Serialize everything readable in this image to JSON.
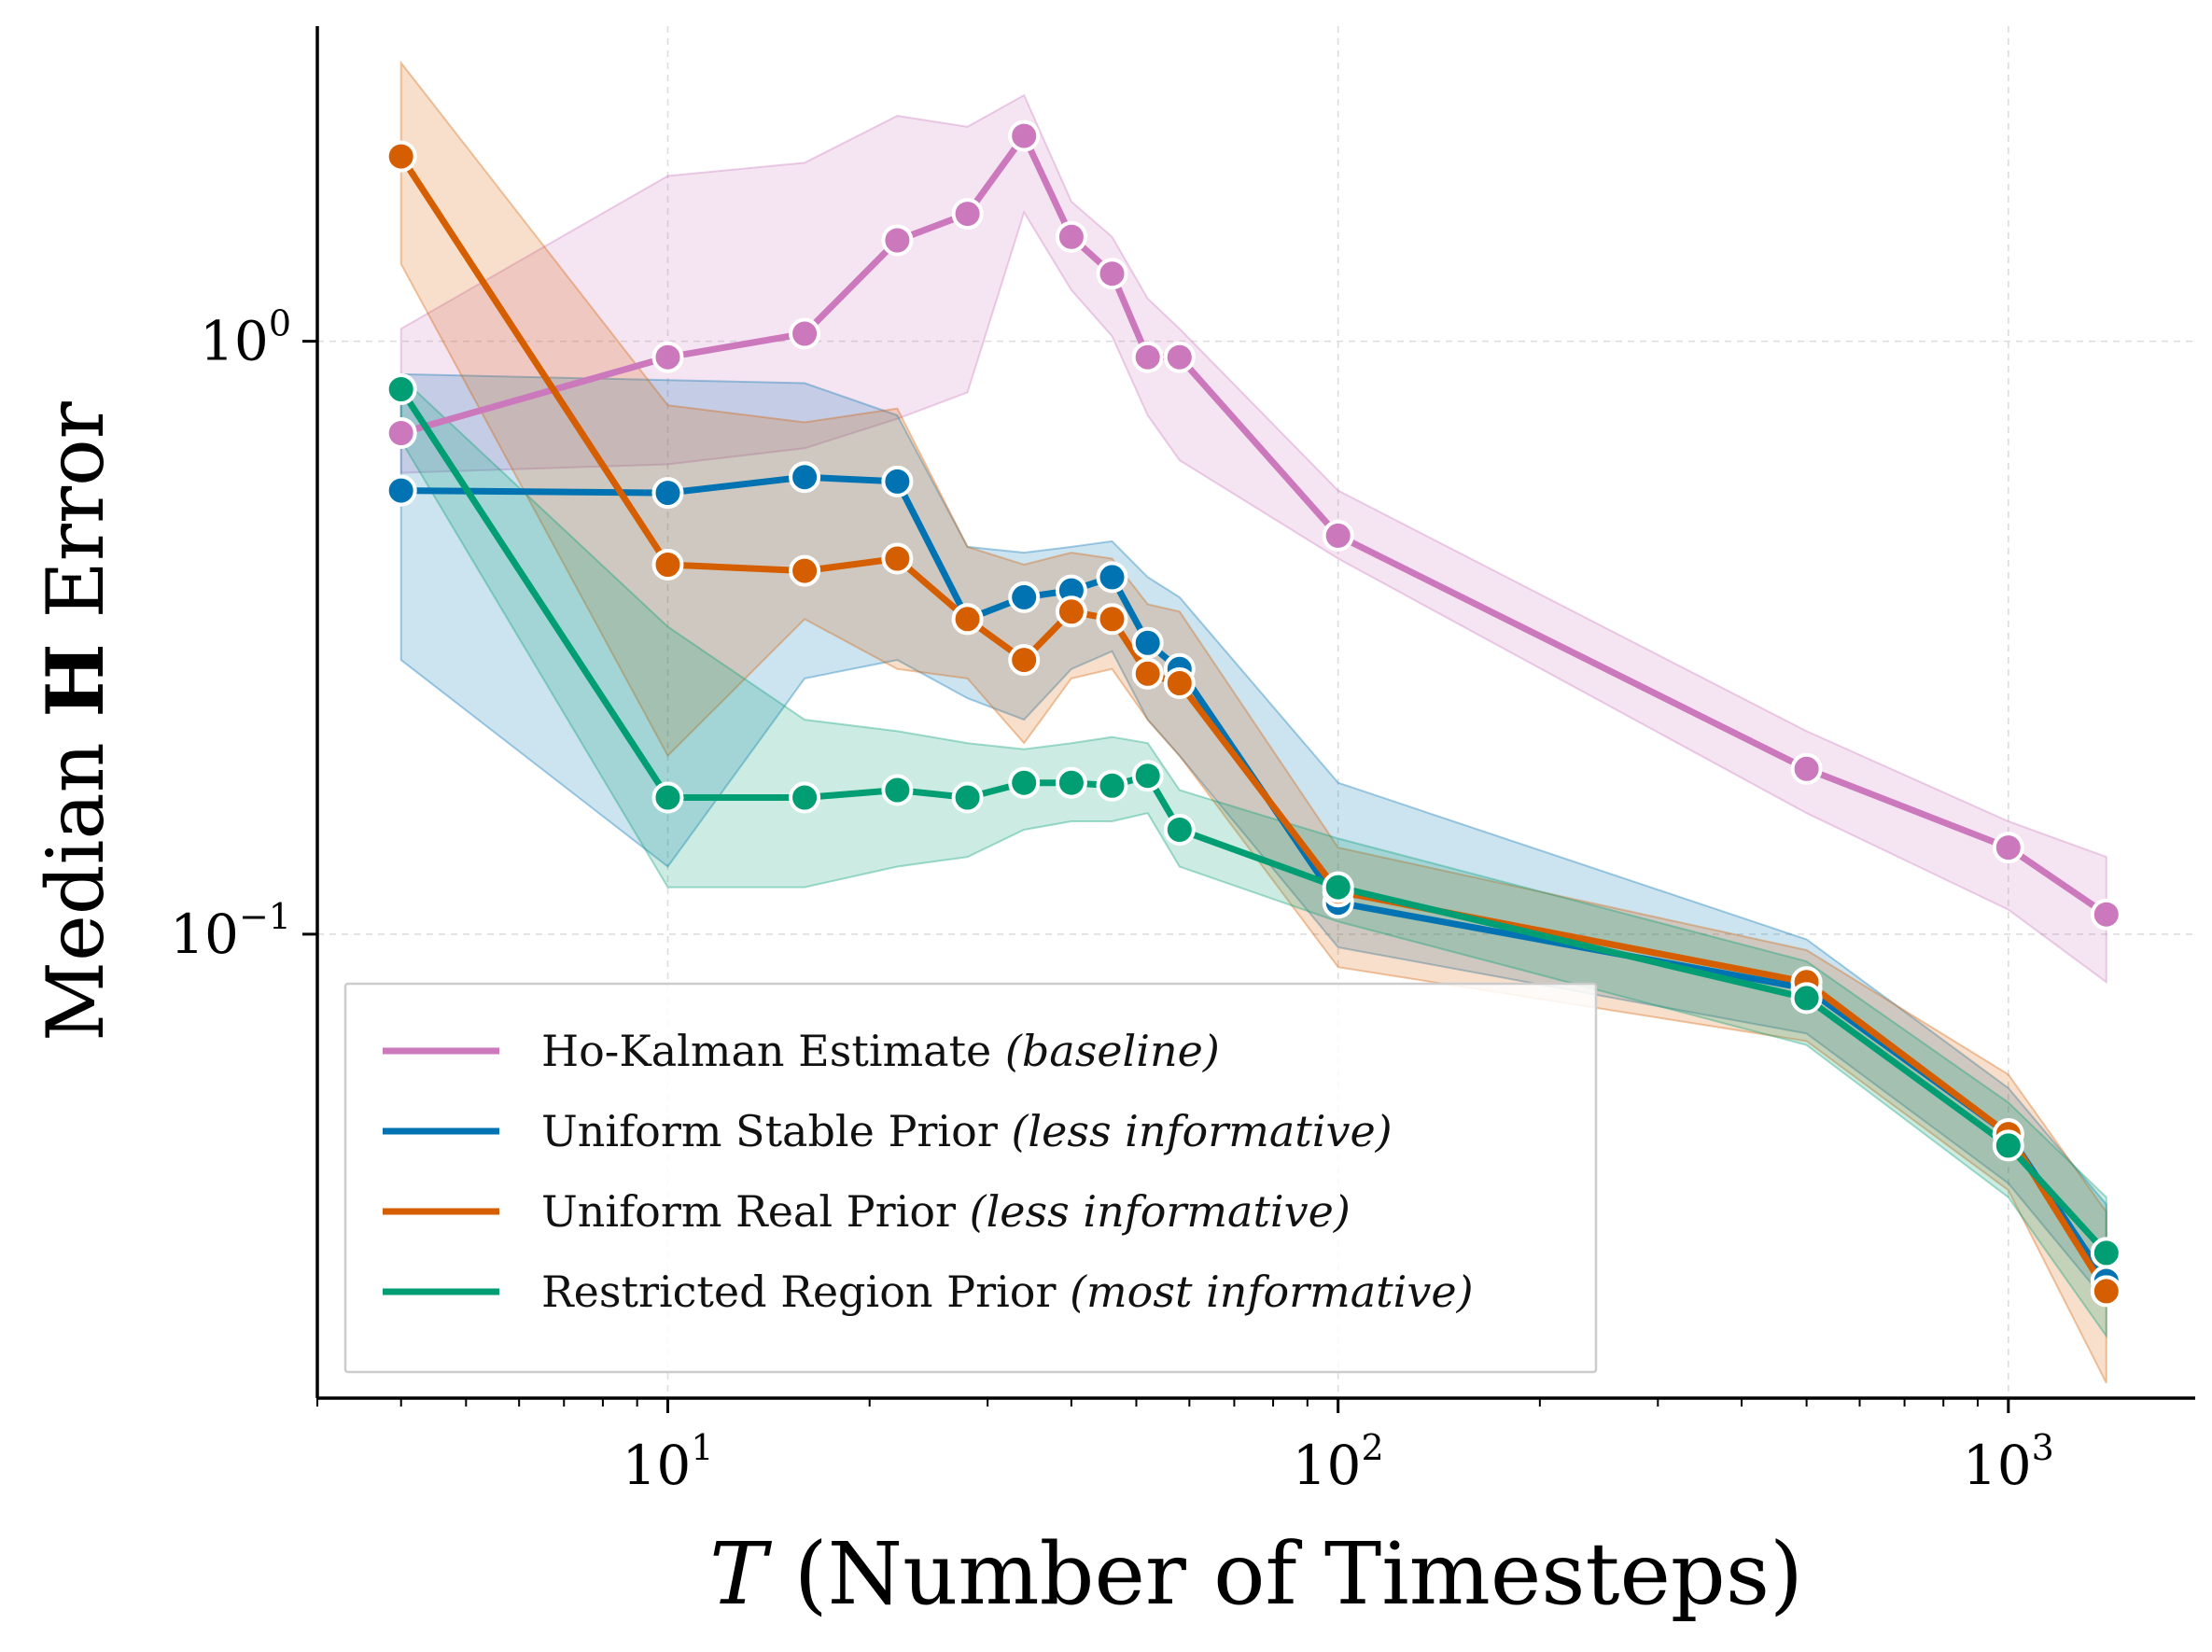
{
  "chart_data": {
    "type": "line",
    "xscale": "log",
    "yscale": "log",
    "xlim": [
      3.0,
      1900
    ],
    "ylim": [
      0.0165,
      3.4
    ],
    "grid": true,
    "legend_position": "lower-left",
    "xlabel": {
      "symbol": "T",
      "text": "(Number of Timesteps)"
    },
    "ylabel": {
      "pre": "Median",
      "bold": "H",
      "post": "Error"
    },
    "xticks": [
      {
        "value": 10,
        "base": "10",
        "exp": "1"
      },
      {
        "value": 100,
        "base": "10",
        "exp": "2"
      },
      {
        "value": 1000,
        "base": "10",
        "exp": "3"
      }
    ],
    "yticks": [
      {
        "value": 1,
        "base": "10",
        "exp": "0"
      },
      {
        "value": 0.1,
        "base": "10",
        "exp": "−1"
      }
    ],
    "x": [
      4,
      10,
      16,
      22,
      28,
      34,
      40,
      46,
      52,
      58,
      100,
      500,
      1000,
      1400
    ],
    "series": [
      {
        "name": "Ho-Kalman Estimate",
        "note": "(baseline)",
        "color": "#cc78bc",
        "values": [
          0.7,
          0.94,
          1.03,
          1.48,
          1.64,
          2.22,
          1.5,
          1.3,
          0.94,
          0.94,
          0.47,
          0.19,
          0.14,
          0.108
        ],
        "lower": [
          0.6,
          0.62,
          0.66,
          0.74,
          0.82,
          1.65,
          1.22,
          1.02,
          0.75,
          0.63,
          0.43,
          0.16,
          0.11,
          0.083
        ],
        "upper": [
          1.05,
          1.9,
          2.0,
          2.4,
          2.3,
          2.6,
          1.72,
          1.5,
          1.18,
          1.05,
          0.56,
          0.22,
          0.155,
          0.135
        ]
      },
      {
        "name": "Uniform Stable Prior",
        "note": "(less informative)",
        "color": "#0173b2",
        "values": [
          0.56,
          0.555,
          0.59,
          0.58,
          0.34,
          0.37,
          0.38,
          0.4,
          0.31,
          0.28,
          0.113,
          0.081,
          0.046,
          0.026
        ],
        "lower": [
          0.29,
          0.13,
          0.27,
          0.29,
          0.25,
          0.23,
          0.28,
          0.3,
          0.23,
          0.2,
          0.095,
          0.068,
          0.038,
          0.024
        ],
        "upper": [
          0.88,
          0.86,
          0.85,
          0.75,
          0.45,
          0.44,
          0.45,
          0.46,
          0.4,
          0.37,
          0.18,
          0.098,
          0.055,
          0.035
        ]
      },
      {
        "name": "Uniform Real Prior",
        "note": "(less informative)",
        "color": "#d55e00",
        "values": [
          2.05,
          0.42,
          0.41,
          0.43,
          0.34,
          0.29,
          0.35,
          0.34,
          0.275,
          0.265,
          0.118,
          0.083,
          0.046,
          0.025
        ],
        "lower": [
          1.35,
          0.2,
          0.34,
          0.28,
          0.27,
          0.21,
          0.27,
          0.28,
          0.23,
          0.2,
          0.088,
          0.066,
          0.037,
          0.0175
        ],
        "upper": [
          2.95,
          0.78,
          0.73,
          0.77,
          0.45,
          0.42,
          0.44,
          0.43,
          0.36,
          0.35,
          0.14,
          0.094,
          0.058,
          0.034
        ]
      },
      {
        "name": "Restricted Region Prior",
        "note": "(most informative)",
        "color": "#029e73",
        "values": [
          0.83,
          0.17,
          0.17,
          0.175,
          0.17,
          0.18,
          0.18,
          0.178,
          0.185,
          0.15,
          0.12,
          0.078,
          0.044,
          0.029
        ],
        "lower": [
          0.68,
          0.12,
          0.12,
          0.13,
          0.135,
          0.15,
          0.155,
          0.155,
          0.16,
          0.13,
          0.105,
          0.065,
          0.036,
          0.021
        ],
        "upper": [
          0.87,
          0.33,
          0.23,
          0.22,
          0.21,
          0.205,
          0.21,
          0.215,
          0.21,
          0.175,
          0.145,
          0.09,
          0.052,
          0.036
        ]
      }
    ]
  }
}
